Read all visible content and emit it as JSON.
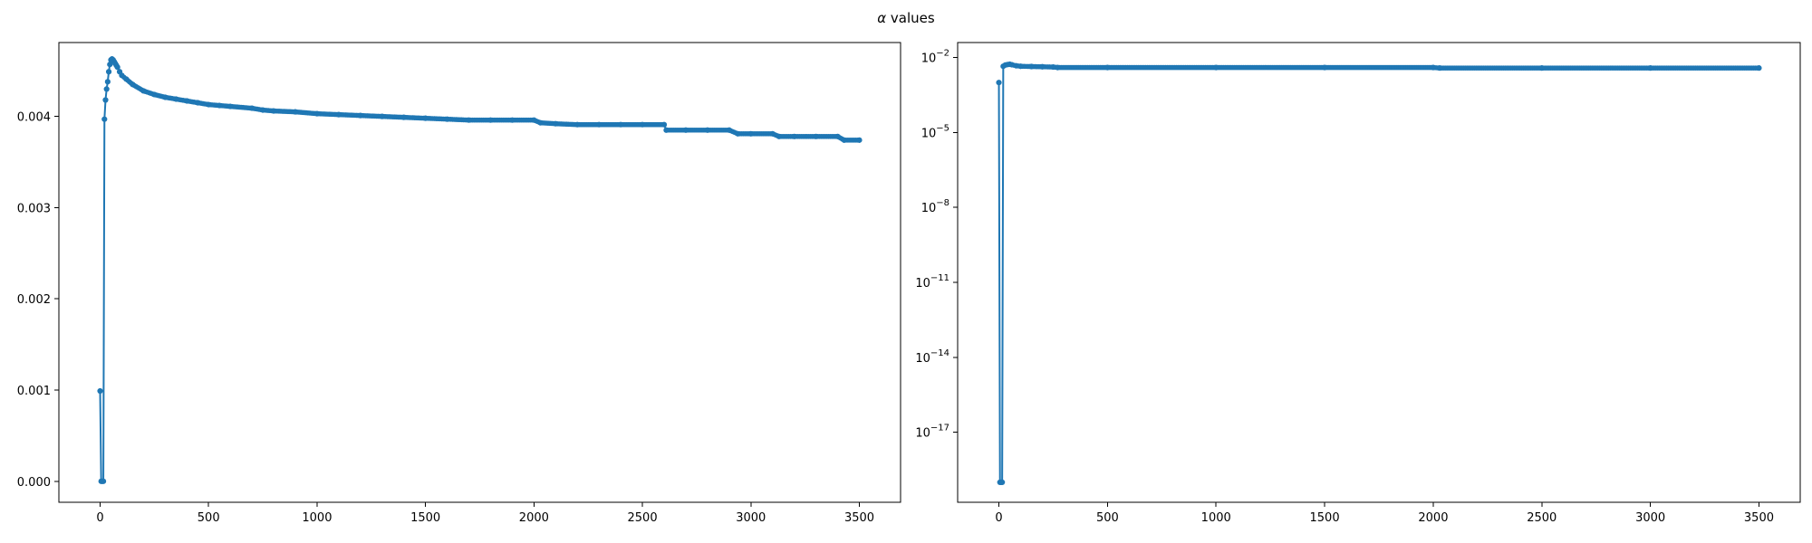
{
  "figure_title": {
    "symbol": "α",
    "text": " values"
  },
  "chart_data": [
    {
      "type": "line",
      "scale": "linear",
      "title": "",
      "xlabel": "",
      "ylabel": "",
      "xlim": [
        -190,
        3690
      ],
      "ylim": [
        -0.00023,
        0.00481
      ],
      "xticks": [
        0,
        500,
        1000,
        1500,
        2000,
        2500,
        3000,
        3500
      ],
      "xtick_labels": [
        "0",
        "500",
        "1000",
        "1500",
        "2000",
        "2500",
        "3000",
        "3500"
      ],
      "yticks": [
        0,
        0.001,
        0.002,
        0.003,
        0.004
      ],
      "ytick_labels": [
        "0.000",
        "0.001",
        "0.002",
        "0.003",
        "0.004"
      ],
      "grid": false,
      "color": "#1f77b4",
      "marker": "circle",
      "series": [
        {
          "x": [
            0,
            5,
            10,
            15,
            20,
            25,
            30,
            35,
            40,
            45,
            50,
            55,
            60,
            65,
            70,
            75,
            80,
            90,
            100,
            120,
            150,
            200,
            250,
            300,
            350,
            400,
            450,
            500,
            550,
            600,
            700,
            750,
            800,
            900,
            1000,
            1100,
            1200,
            1300,
            1400,
            1500,
            1600,
            1700,
            1800,
            1900,
            2000,
            2030,
            2100,
            2200,
            2300,
            2400,
            2500,
            2600,
            2610,
            2700,
            2800,
            2900,
            2940,
            3000,
            3100,
            3130,
            3200,
            3300,
            3400,
            3430,
            3500
          ],
          "y": [
            0.00099,
            0.0,
            0.0,
            0.0,
            0.00397,
            0.00418,
            0.0043,
            0.00438,
            0.00449,
            0.00457,
            0.00462,
            0.00463,
            0.00462,
            0.0046,
            0.00458,
            0.00456,
            0.00454,
            0.00449,
            0.00445,
            0.00441,
            0.00435,
            0.00428,
            0.00424,
            0.00421,
            0.00419,
            0.00417,
            0.00415,
            0.00413,
            0.00412,
            0.00411,
            0.00409,
            0.00407,
            0.00406,
            0.00405,
            0.00403,
            0.00402,
            0.00401,
            0.004,
            0.00399,
            0.00398,
            0.00397,
            0.00396,
            0.00396,
            0.00396,
            0.00396,
            0.00393,
            0.00392,
            0.00391,
            0.00391,
            0.00391,
            0.00391,
            0.00391,
            0.00385,
            0.00385,
            0.00385,
            0.00385,
            0.00381,
            0.00381,
            0.00381,
            0.00378,
            0.00378,
            0.00378,
            0.00378,
            0.00374,
            0.00374
          ]
        }
      ]
    },
    {
      "type": "line",
      "scale": "log",
      "title": "",
      "xlabel": "",
      "ylabel": "",
      "xlim": [
        -190,
        3690
      ],
      "ylim_exponent": [
        -19.8,
        -1.4
      ],
      "xticks": [
        0,
        500,
        1000,
        1500,
        2000,
        2500,
        3000,
        3500
      ],
      "xtick_labels": [
        "0",
        "500",
        "1000",
        "1500",
        "2000",
        "2500",
        "3000",
        "3500"
      ],
      "yticks_exponent": [
        -2,
        -5,
        -8,
        -11,
        -14,
        -17
      ],
      "ytick_labels": [
        "10",
        "10",
        "10",
        "10",
        "10",
        "10"
      ],
      "ytick_exponent_labels": [
        "−2",
        "−5",
        "−8",
        "−11",
        "−14",
        "−17"
      ],
      "grid": false,
      "color": "#1f77b4",
      "marker": "circle",
      "series": [
        {
          "x": [
            0,
            5,
            10,
            15,
            20,
            30,
            40,
            50,
            60,
            80,
            100,
            150,
            200,
            250,
            270,
            500,
            1000,
            1500,
            2000,
            2030,
            2500,
            3000,
            3500
          ],
          "y_exponent": [
            -3.0,
            -19.0,
            -19.0,
            -19.0,
            -2.35,
            -2.3,
            -2.28,
            -2.27,
            -2.29,
            -2.33,
            -2.35,
            -2.36,
            -2.37,
            -2.38,
            -2.4,
            -2.4,
            -2.4,
            -2.4,
            -2.4,
            -2.42,
            -2.42,
            -2.42,
            -2.42
          ]
        }
      ]
    }
  ]
}
